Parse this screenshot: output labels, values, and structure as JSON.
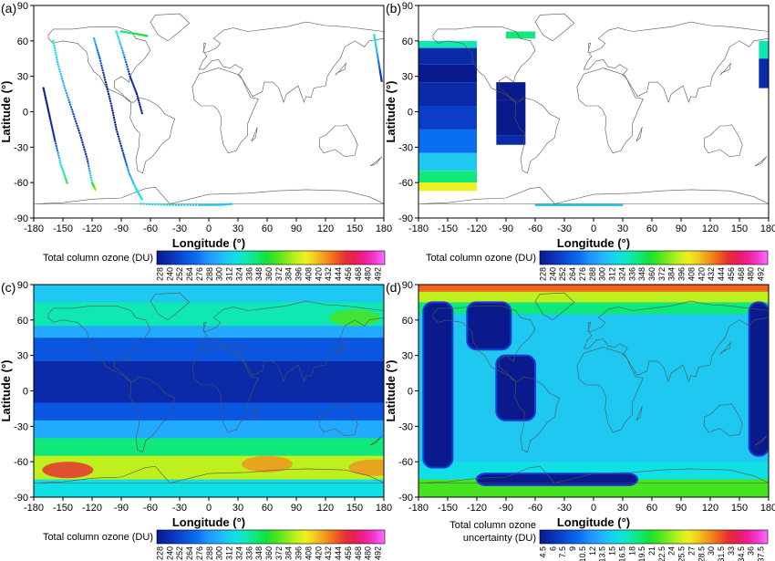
{
  "chart_data": [
    {
      "type": "heatmap",
      "panel_label": "(a)",
      "xlabel": "Longitude (°)",
      "ylabel": "Latitude (°)",
      "xlim": [
        -180,
        180
      ],
      "ylim": [
        -90,
        90
      ],
      "x_ticks": [
        -180,
        -150,
        -120,
        -90,
        -60,
        -30,
        0,
        30,
        60,
        90,
        120,
        150,
        180
      ],
      "y_ticks": [
        -90,
        -60,
        -30,
        0,
        30,
        60,
        90
      ],
      "colorbar_label": "Total column ozone (DU)",
      "colorbar_ticks": [
        "228",
        "240",
        "252",
        "264",
        "276",
        "288",
        "300",
        "312",
        "324",
        "336",
        "348",
        "360",
        "372",
        "384",
        "396",
        "408",
        "420",
        "432",
        "444",
        "456",
        "468",
        "480",
        "492"
      ],
      "content": "satellite ground-track points",
      "tracks": [
        {
          "points": [
            [
              -170,
              20
            ],
            [
              -166,
              5
            ],
            [
              -162,
              -10
            ],
            [
              -158,
              -25
            ],
            [
              -152,
              -45
            ],
            [
              -145,
              -62
            ]
          ],
          "values": [
            230,
            235,
            240,
            250,
            320,
            360
          ]
        },
        {
          "points": [
            [
              -160,
              60
            ],
            [
              -155,
              40
            ],
            [
              -148,
              20
            ],
            [
              -140,
              0
            ],
            [
              -132,
              -20
            ],
            [
              -125,
              -40
            ],
            [
              -120,
              -60
            ],
            [
              -116,
              -67
            ]
          ],
          "values": [
            330,
            312,
            300,
            260,
            245,
            250,
            340,
            390
          ]
        },
        {
          "points": [
            [
              -118,
              62
            ],
            [
              -112,
              45
            ],
            [
              -106,
              25
            ],
            [
              -100,
              5
            ],
            [
              -95,
              -15
            ],
            [
              -88,
              -35
            ],
            [
              -82,
              -52
            ],
            [
              -75,
              -65
            ],
            [
              -68,
              -75
            ]
          ],
          "values": [
            300,
            270,
            235,
            240,
            232,
            250,
            300,
            320,
            318
          ]
        },
        {
          "points": [
            [
              -95,
              68
            ],
            [
              -88,
              50
            ],
            [
              -81,
              30
            ],
            [
              -74,
              15
            ],
            [
              -68,
              -3
            ]
          ],
          "values": [
            340,
            290,
            245,
            238,
            235
          ]
        },
        {
          "points": [
            [
              -90,
              68
            ],
            [
              -75,
              66
            ],
            [
              -62,
              64
            ]
          ],
          "values": [
            345,
            350,
            352
          ]
        },
        {
          "points": [
            [
              -70,
              -78
            ],
            [
              -40,
              -79
            ],
            [
              -10,
              -79
            ],
            [
              10,
              -79
            ],
            [
              25,
              -78
            ]
          ],
          "values": [
            318,
            316,
            312,
            314,
            316
          ]
        },
        {
          "points": [
            [
              170,
              65
            ],
            [
              173,
              50
            ],
            [
              176,
              35
            ],
            [
              178,
              25
            ]
          ],
          "values": [
            336,
            300,
            260,
            245
          ]
        }
      ]
    },
    {
      "type": "heatmap",
      "panel_label": "(b)",
      "xlabel": "Longitude (°)",
      "ylabel": "Latitude (°)",
      "xlim": [
        -180,
        180
      ],
      "ylim": [
        -90,
        90
      ],
      "x_ticks": [
        -180,
        -150,
        -120,
        -90,
        -60,
        -30,
        0,
        30,
        60,
        90,
        120,
        150,
        180
      ],
      "y_ticks": [
        -90,
        -60,
        -30,
        0,
        30,
        60,
        90
      ],
      "colorbar_label": "Total column ozone (DU)",
      "colorbar_ticks": [
        "228",
        "240",
        "252",
        "264",
        "276",
        "288",
        "300",
        "312",
        "324",
        "336",
        "348",
        "360",
        "372",
        "384",
        "396",
        "408",
        "420",
        "432",
        "444",
        "456",
        "468",
        "480",
        "492"
      ],
      "content": "gridded swaths",
      "swaths": [
        {
          "lon": [
            -180,
            -120
          ],
          "lat_bands": [
            [
              60,
              54,
              336
            ],
            [
              54,
              40,
              240
            ],
            [
              40,
              25,
              232
            ],
            [
              25,
              5,
              240
            ],
            [
              5,
              -15,
              250
            ],
            [
              -15,
              -35,
              276
            ],
            [
              -35,
              -50,
              312
            ],
            [
              -50,
              -60,
              348
            ],
            [
              -60,
              -67,
              396
            ]
          ]
        },
        {
          "lon": [
            -100,
            -70
          ],
          "lat_bands": [
            [
              25,
              10,
              238
            ],
            [
              10,
              -5,
              232
            ],
            [
              -5,
              -20,
              236
            ],
            [
              -20,
              -28,
              245
            ]
          ]
        },
        {
          "lon": [
            -90,
            -60
          ],
          "lat_bands": [
            [
              68,
              62,
              348
            ]
          ]
        },
        {
          "lon": [
            -60,
            30
          ],
          "lat_bands": [
            [
              -78,
              -80,
              312
            ]
          ]
        },
        {
          "lon": [
            170,
            180
          ],
          "lat_bands": [
            [
              60,
              45,
              336
            ],
            [
              45,
              20,
              240
            ]
          ]
        }
      ]
    },
    {
      "type": "heatmap",
      "panel_label": "(c)",
      "xlabel": "Longitude (°)",
      "ylabel": "Latitude (°)",
      "xlim": [
        -180,
        180
      ],
      "ylim": [
        -90,
        90
      ],
      "x_ticks": [
        -180,
        -150,
        -120,
        -90,
        -60,
        -30,
        0,
        30,
        60,
        90,
        120,
        150,
        180
      ],
      "y_ticks": [
        -90,
        -60,
        -30,
        0,
        30,
        60,
        90
      ],
      "colorbar_label": "Total column ozone (DU)",
      "colorbar_ticks": [
        "228",
        "240",
        "252",
        "264",
        "276",
        "288",
        "300",
        "312",
        "324",
        "336",
        "348",
        "360",
        "372",
        "384",
        "396",
        "408",
        "420",
        "432",
        "444",
        "456",
        "468",
        "480",
        "492"
      ],
      "content": "global total column ozone field",
      "lat_bands": [
        [
          90,
          75,
          312
        ],
        [
          75,
          55,
          336
        ],
        [
          55,
          45,
          300
        ],
        [
          45,
          25,
          270
        ],
        [
          25,
          -10,
          240
        ],
        [
          -10,
          -25,
          270
        ],
        [
          -25,
          -40,
          300
        ],
        [
          -40,
          -55,
          348
        ],
        [
          -55,
          -75,
          384
        ],
        [
          -75,
          -90,
          324
        ]
      ],
      "anomalies": [
        {
          "lon": -145,
          "lat": -67,
          "value": 444
        },
        {
          "lon": 60,
          "lat": -62,
          "value": 420
        },
        {
          "lon": 170,
          "lat": -65,
          "value": 420
        },
        {
          "lon": -110,
          "lat": 62,
          "value": 336
        },
        {
          "lon": 150,
          "lat": 62,
          "value": 360
        }
      ]
    },
    {
      "type": "heatmap",
      "panel_label": "(d)",
      "xlabel": "Longitude (°)",
      "ylabel": "Latitude (°)",
      "xlim": [
        -180,
        180
      ],
      "ylim": [
        -90,
        90
      ],
      "x_ticks": [
        -180,
        -150,
        -120,
        -90,
        -60,
        -30,
        0,
        30,
        60,
        90,
        120,
        150,
        180
      ],
      "y_ticks": [
        -90,
        -60,
        -30,
        0,
        30,
        60,
        90
      ],
      "colorbar_label": "Total column ozone uncertainty (DU)",
      "colorbar_ticks": [
        "4.5",
        "6",
        "7.5",
        "9",
        "10.5",
        "12",
        "13.5",
        "15",
        "16.5",
        "18",
        "19.5",
        "21",
        "22.5",
        "24",
        "25.5",
        "27",
        "28.5",
        "30",
        "31.5",
        "33",
        "34.5",
        "36",
        "37.5"
      ],
      "content": "uncertainty field; dark blue where observations exist",
      "lat_bands": [
        [
          90,
          84,
          30
        ],
        [
          84,
          75,
          24
        ],
        [
          75,
          65,
          19.5
        ],
        [
          65,
          -60,
          15
        ],
        [
          -60,
          -75,
          16.5
        ],
        [
          -75,
          -90,
          21
        ]
      ],
      "low_uncertainty_regions": [
        {
          "lon": [
            -175,
            -145
          ],
          "lat": [
            75,
            -65
          ],
          "value": 4.5
        },
        {
          "lon": [
            -130,
            -85
          ],
          "lat": [
            75,
            35
          ],
          "value": 4.5
        },
        {
          "lon": [
            -100,
            -60
          ],
          "lat": [
            30,
            -25
          ],
          "value": 4.5
        },
        {
          "lon": [
            -120,
            45
          ],
          "lat": [
            -70,
            -80
          ],
          "value": 4.5
        },
        {
          "lon": [
            160,
            180
          ],
          "lat": [
            75,
            -55
          ],
          "value": 4.5
        }
      ]
    }
  ],
  "colors": {
    "ozone_scale": [
      "#0a1a8c",
      "#0a2aa8",
      "#0a3ec8",
      "#0a56e0",
      "#0a6ef0",
      "#1e90ff",
      "#22aaff",
      "#1ec8f0",
      "#10e0e6",
      "#10e8b4",
      "#10e87a",
      "#14e03c",
      "#46e41e",
      "#82ea1e",
      "#bef01e",
      "#f0f01e",
      "#f0c81e",
      "#f0961e",
      "#f0641e",
      "#e63232",
      "#e61e5a",
      "#f01e96",
      "#f03cd2",
      "#ff6eff"
    ],
    "land_outline": "#555555",
    "axis": "#000000"
  }
}
